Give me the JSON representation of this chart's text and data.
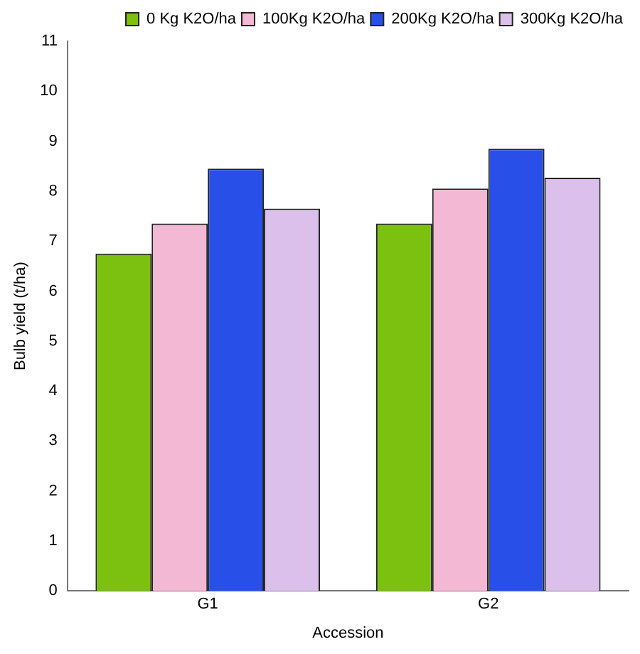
{
  "chart_data": {
    "type": "bar",
    "xlabel": "Accession",
    "ylabel": "Bulb yield (t/ha)",
    "categories": [
      "G1",
      "G2"
    ],
    "series": [
      {
        "name": "0 Kg K2O/ha",
        "color": "#7cc010",
        "values": [
          6.75,
          7.35
        ]
      },
      {
        "name": "100Kg K2O/ha",
        "color": "#f2b8d4",
        "values": [
          7.35,
          8.05
        ]
      },
      {
        "name": "200Kg K2O/ha",
        "color": "#2850e8",
        "values": [
          8.45,
          8.85
        ]
      },
      {
        "name": "300Kg K2O/ha",
        "color": "#dcc0ec",
        "values": [
          7.65,
          8.27
        ]
      }
    ],
    "ylim": [
      0,
      11
    ],
    "yticks": [
      0,
      1,
      2,
      3,
      4,
      5,
      6,
      7,
      8,
      9,
      10,
      11
    ],
    "grid": false,
    "legend": "top right"
  }
}
